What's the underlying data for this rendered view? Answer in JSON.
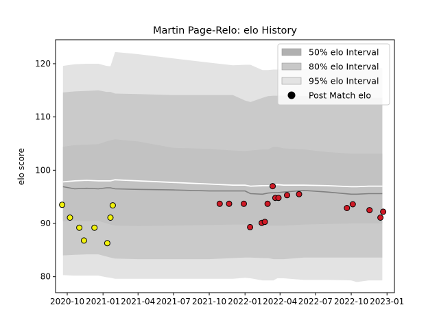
{
  "chart_data": {
    "type": "area",
    "title": "Martin Page-Relo: elo History",
    "xlabel": "",
    "ylabel": "elo score",
    "ylim": [
      77,
      124.5
    ],
    "xlim": [
      "2020-09-01",
      "2023-01-20"
    ],
    "x_ticks": [
      "2020-10",
      "2021-01",
      "2021-04",
      "2021-07",
      "2021-10",
      "2022-01",
      "2022-04",
      "2022-07",
      "2022-10",
      "2023-01"
    ],
    "y_ticks": [
      80,
      90,
      100,
      110,
      120
    ],
    "grid": false,
    "legend_position": "top-right",
    "legend": [
      {
        "label": "50% elo Interval",
        "kind": "patch",
        "color": "#b0b0b0"
      },
      {
        "label": "80% elo Interval",
        "kind": "patch",
        "color": "#c8c8c8"
      },
      {
        "label": "95% elo Interval",
        "kind": "patch",
        "color": "#e3e3e3"
      },
      {
        "label": "Post Match elo",
        "kind": "marker",
        "color": "#000000"
      }
    ],
    "colors": {
      "band95": "#e3e3e3",
      "band80": "#cacaca",
      "band50": "#c2c2c2",
      "median_line": "#808080",
      "mean_line": "#ffffff",
      "season_one_points": "#f2f20d",
      "season_two_points": "#d01a26",
      "marker_edge": "#000000"
    },
    "band_dates": [
      "2020-09-20",
      "2020-10-20",
      "2020-11-20",
      "2020-12-20",
      "2021-01-10",
      "2021-01-20",
      "2021-02-01",
      "2021-04-01",
      "2021-07-01",
      "2021-10-01",
      "2021-12-01",
      "2022-01-01",
      "2022-01-15",
      "2022-02-15",
      "2022-03-01",
      "2022-03-15",
      "2022-03-25",
      "2022-04-10",
      "2022-06-01",
      "2022-08-01",
      "2022-10-01",
      "2022-10-15",
      "2022-11-15",
      "2022-12-20"
    ],
    "series": [
      {
        "name": "95% elo Interval",
        "upper": [
          119.6,
          119.9,
          120.0,
          120.0,
          119.6,
          119.5,
          122.2,
          121.8,
          121.0,
          120.2,
          119.7,
          119.8,
          119.8,
          118.8,
          118.8,
          118.9,
          118.9,
          118.9,
          119.0,
          119.2,
          119.2,
          119.1,
          119.2,
          119.2
        ],
        "lower": [
          80.3,
          80.2,
          80.2,
          80.2,
          79.9,
          79.8,
          79.6,
          79.6,
          79.6,
          79.6,
          79.6,
          79.8,
          79.7,
          79.3,
          79.3,
          79.3,
          79.7,
          79.7,
          79.4,
          79.4,
          79.3,
          79.0,
          79.3,
          79.3
        ]
      },
      {
        "name": "80% elo Interval",
        "upper": [
          114.6,
          114.8,
          114.9,
          115.0,
          114.7,
          114.7,
          114.4,
          114.3,
          114.1,
          114.1,
          114.1,
          113.1,
          112.8,
          113.6,
          113.9,
          114.0,
          114.0,
          114.0,
          113.9,
          113.7,
          113.7,
          113.6,
          113.6,
          113.6
        ],
        "lower": [
          84.0,
          84.1,
          84.2,
          84.2,
          83.8,
          83.6,
          83.4,
          83.3,
          83.3,
          83.3,
          83.5,
          83.6,
          83.6,
          83.5,
          83.5,
          83.3,
          83.3,
          83.3,
          83.6,
          83.6,
          83.6,
          83.6,
          83.6,
          83.6
        ]
      },
      {
        "name": "50% elo Interval",
        "upper": [
          104.4,
          104.7,
          104.8,
          104.9,
          105.4,
          105.6,
          105.8,
          105.4,
          104.2,
          104.0,
          103.7,
          103.6,
          103.7,
          103.9,
          103.9,
          104.4,
          104.4,
          104.1,
          103.9,
          103.4,
          103.1,
          103.1,
          103.1,
          103.1
        ],
        "lower": [
          90.4,
          90.5,
          90.4,
          90.5,
          90.0,
          89.8,
          89.6,
          89.5,
          89.6,
          89.7,
          89.8,
          89.8,
          89.8,
          89.6,
          89.6,
          89.6,
          89.6,
          89.6,
          89.8,
          89.9,
          90.0,
          90.0,
          90.0,
          90.0
        ]
      },
      {
        "name": "Median elo",
        "values": [
          96.9,
          96.5,
          96.6,
          96.5,
          96.7,
          96.7,
          96.5,
          96.4,
          96.3,
          96.1,
          96.1,
          96.1,
          95.6,
          95.5,
          95.7,
          95.8,
          95.8,
          95.9,
          96.2,
          95.9,
          95.5,
          95.5,
          95.6,
          95.6
        ]
      },
      {
        "name": "Mean elo",
        "values": [
          97.8,
          98.0,
          98.1,
          98.0,
          98.0,
          98.0,
          98.2,
          98.0,
          97.7,
          97.4,
          97.2,
          97.2,
          97.0,
          97.1,
          97.1,
          97.2,
          97.3,
          97.2,
          97.2,
          97.1,
          96.9,
          96.9,
          97.0,
          97.0
        ]
      }
    ],
    "points": [
      {
        "date": "2020-09-18",
        "elo": 93.5,
        "group": 1
      },
      {
        "date": "2020-10-08",
        "elo": 91.1,
        "group": 1
      },
      {
        "date": "2020-11-01",
        "elo": 89.2,
        "group": 1
      },
      {
        "date": "2020-11-13",
        "elo": 86.8,
        "group": 1
      },
      {
        "date": "2020-12-10",
        "elo": 89.2,
        "group": 1
      },
      {
        "date": "2021-01-12",
        "elo": 86.3,
        "group": 1
      },
      {
        "date": "2021-01-20",
        "elo": 91.1,
        "group": 1
      },
      {
        "date": "2021-01-26",
        "elo": 93.4,
        "group": 1
      },
      {
        "date": "2021-10-28",
        "elo": 93.7,
        "group": 2
      },
      {
        "date": "2021-11-21",
        "elo": 93.7,
        "group": 2
      },
      {
        "date": "2021-12-29",
        "elo": 93.7,
        "group": 2
      },
      {
        "date": "2022-01-14",
        "elo": 89.3,
        "group": 2
      },
      {
        "date": "2022-02-13",
        "elo": 90.1,
        "group": 2
      },
      {
        "date": "2022-02-21",
        "elo": 90.3,
        "group": 2
      },
      {
        "date": "2022-02-28",
        "elo": 93.7,
        "group": 2
      },
      {
        "date": "2022-03-13",
        "elo": 97.0,
        "group": 2
      },
      {
        "date": "2022-03-20",
        "elo": 94.8,
        "group": 2
      },
      {
        "date": "2022-03-28",
        "elo": 94.8,
        "group": 2
      },
      {
        "date": "2022-04-19",
        "elo": 95.3,
        "group": 2
      },
      {
        "date": "2022-05-20",
        "elo": 95.5,
        "group": 2
      },
      {
        "date": "2022-09-20",
        "elo": 92.9,
        "group": 2
      },
      {
        "date": "2022-10-05",
        "elo": 93.6,
        "group": 2
      },
      {
        "date": "2022-11-17",
        "elo": 92.5,
        "group": 2
      },
      {
        "date": "2022-12-15",
        "elo": 91.1,
        "group": 2
      },
      {
        "date": "2022-12-22",
        "elo": 92.2,
        "group": 2
      }
    ]
  }
}
